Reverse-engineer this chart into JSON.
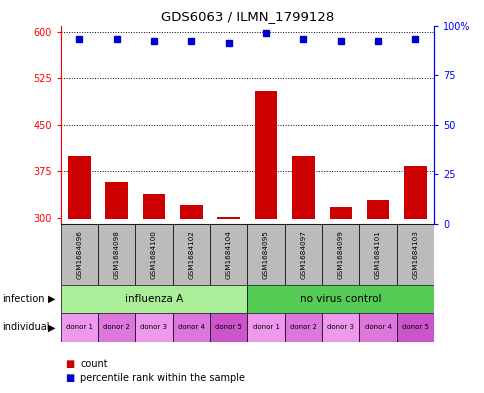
{
  "title": "GDS6063 / ILMN_1799128",
  "samples": [
    "GSM1684096",
    "GSM1684098",
    "GSM1684100",
    "GSM1684102",
    "GSM1684104",
    "GSM1684095",
    "GSM1684097",
    "GSM1684099",
    "GSM1684101",
    "GSM1684103"
  ],
  "counts": [
    400,
    358,
    338,
    320,
    302,
    505,
    399,
    318,
    328,
    384
  ],
  "percentile_ranks": [
    93,
    93,
    92,
    92,
    91,
    96,
    93,
    92,
    92,
    93
  ],
  "ylim_left": [
    290,
    610
  ],
  "ylim_right": [
    0,
    100
  ],
  "yticks_left": [
    300,
    375,
    450,
    525,
    600
  ],
  "yticks_right": [
    0,
    25,
    50,
    75,
    100
  ],
  "bar_color": "#cc0000",
  "dot_color": "#0000cc",
  "bar_bottom": 298,
  "infection_groups": [
    {
      "label": "influenza A",
      "start": 0,
      "end": 5,
      "color": "#aaee99"
    },
    {
      "label": "no virus control",
      "start": 5,
      "end": 10,
      "color": "#55cc55"
    }
  ],
  "individual_labels": [
    "donor 1",
    "donor 2",
    "donor 3",
    "donor 4",
    "donor 5",
    "donor 1",
    "donor 2",
    "donor 3",
    "donor 4",
    "donor 5"
  ],
  "individual_colors": [
    "#ee99ee",
    "#dd77dd",
    "#ee99ee",
    "#dd77dd",
    "#cc55cc",
    "#ee99ee",
    "#dd77dd",
    "#ee99ee",
    "#dd77dd",
    "#cc55cc"
  ],
  "legend_count_label": "count",
  "legend_percentile_label": "percentile rank within the sample",
  "bg_color": "#ffffff",
  "sample_bg_color": "#bbbbbb"
}
